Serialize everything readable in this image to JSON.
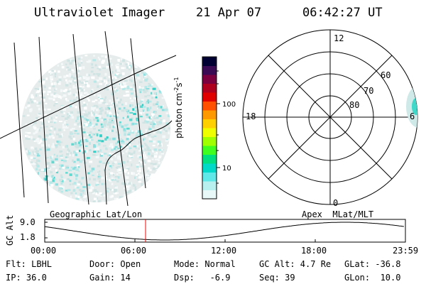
{
  "header": {
    "instrument": "Ultraviolet Imager",
    "date": "21 Apr 07",
    "time": "06:42:27 UT"
  },
  "colorbar": {
    "tick_labels": [
      "100",
      "10"
    ],
    "unit_base": "photon cm",
    "unit_exp1": "-2",
    "unit_mid": "s",
    "unit_exp2": "-1",
    "colors": [
      "#000033",
      "#3a0a55",
      "#7a0040",
      "#b00020",
      "#e00000",
      "#ff5000",
      "#ff9900",
      "#ffd000",
      "#f0ff00",
      "#a0ff00",
      "#40ff20",
      "#00e080",
      "#00d8c8",
      "#60e8e8",
      "#b8f0f0",
      "#e8f8f8"
    ]
  },
  "polar_plot": {
    "mlt_labels": [
      "12",
      "18",
      "6",
      "0"
    ],
    "lat_labels": [
      "60",
      "70",
      "80"
    ]
  },
  "labels": {
    "left_map": "Geographic Lat/Lon",
    "right_map": "Apex  MLat/MLT"
  },
  "altitude_panel": {
    "ylabel": "GC Alt",
    "y_ticks": [
      "9.0",
      "1.8"
    ],
    "x_ticks": [
      "00:00",
      "06:00",
      "12:00",
      "18:00",
      "23:59"
    ],
    "current_time_hours": 6.71,
    "marker_color": "#ff0000"
  },
  "footer": {
    "filter": "Flt: LBHL",
    "ip": "IP: 36.0",
    "door": "Door: Open",
    "gain": "Gain: 14",
    "mode": "Mode: Normal",
    "dsp": "Dsp:   -6.9",
    "gc_alt": "GC Alt: 4.7 Re",
    "seq": "Seq: 39",
    "glat": "GLat: -36.8",
    "glon": "GLon:  10.0"
  }
}
